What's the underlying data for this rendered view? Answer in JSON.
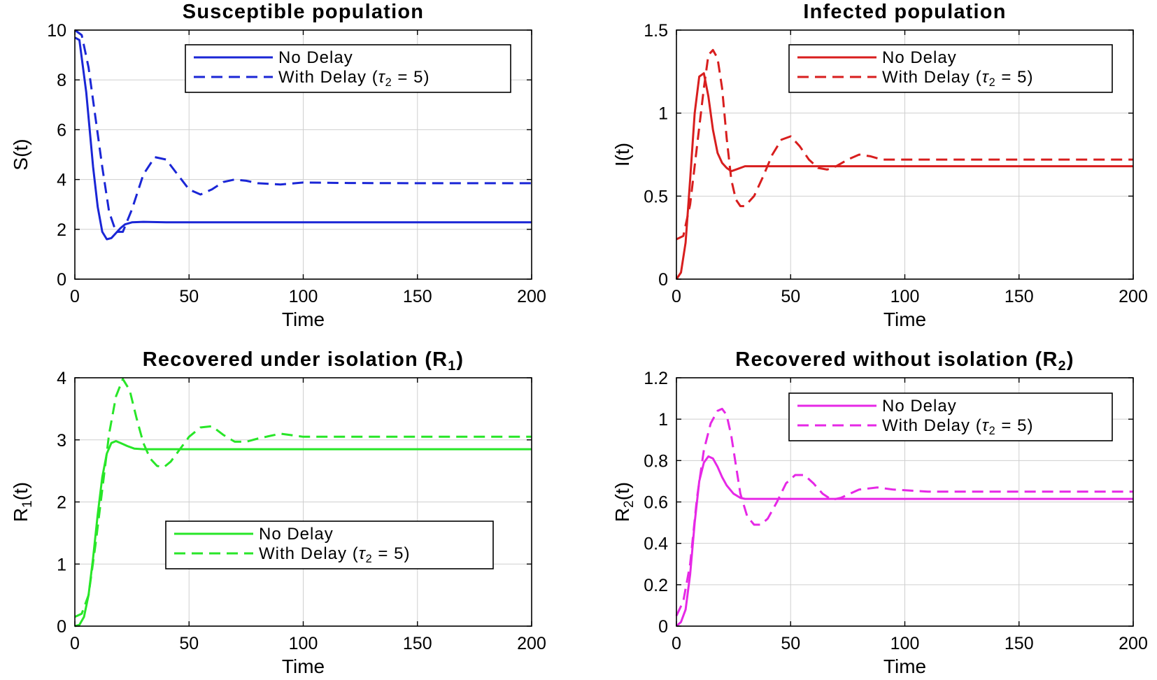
{
  "chart_data": [
    {
      "type": "line",
      "title": "Susceptible population",
      "xlabel": "Time",
      "ylabel": "S(t)",
      "xlim": [
        0,
        200
      ],
      "ylim": [
        0,
        10
      ],
      "xticks": [
        0,
        50,
        100,
        150,
        200
      ],
      "yticks": [
        0,
        2,
        4,
        6,
        8,
        10
      ],
      "ytick_labels": [
        "0",
        "2",
        "4",
        "6",
        "8",
        "10"
      ],
      "grid": true,
      "legend_position": "top-right",
      "color": "#1a26d6",
      "series": [
        {
          "name": "No Delay",
          "style": "solid",
          "x": [
            0,
            2,
            5,
            8,
            10,
            12,
            14,
            16,
            18,
            20,
            22,
            25,
            30,
            40,
            60,
            100,
            150,
            200
          ],
          "y": [
            9.7,
            9.6,
            7.5,
            4.5,
            2.9,
            1.9,
            1.6,
            1.65,
            1.85,
            2.05,
            2.2,
            2.28,
            2.3,
            2.28,
            2.28,
            2.28,
            2.28,
            2.28
          ]
        },
        {
          "name": "With Delay (τ2 = 5)",
          "style": "dashed",
          "x": [
            0,
            3,
            6,
            9,
            12,
            15,
            18,
            21,
            25,
            30,
            35,
            40,
            45,
            50,
            55,
            60,
            65,
            70,
            75,
            80,
            90,
            100,
            120,
            150,
            200
          ],
          "y": [
            10,
            9.8,
            8.5,
            6.5,
            4.5,
            2.7,
            1.9,
            1.9,
            2.8,
            4.2,
            4.9,
            4.8,
            4.2,
            3.6,
            3.4,
            3.6,
            3.9,
            4.0,
            3.95,
            3.85,
            3.8,
            3.88,
            3.86,
            3.85,
            3.85
          ]
        }
      ]
    },
    {
      "type": "line",
      "title": "Infected population",
      "xlabel": "Time",
      "ylabel": "I(t)",
      "xlim": [
        0,
        200
      ],
      "ylim": [
        0,
        1.5
      ],
      "xticks": [
        0,
        50,
        100,
        150,
        200
      ],
      "yticks": [
        0,
        0.5,
        1,
        1.5
      ],
      "ytick_labels": [
        "0",
        "0.5",
        "1",
        "1.5"
      ],
      "grid": true,
      "legend_position": "top-right",
      "color": "#d81e1e",
      "series": [
        {
          "name": "No Delay",
          "style": "solid",
          "x": [
            0,
            2,
            4,
            6,
            8,
            10,
            12,
            14,
            16,
            18,
            20,
            22,
            24,
            26,
            30,
            40,
            60,
            100,
            150,
            200
          ],
          "y": [
            0.0,
            0.04,
            0.22,
            0.6,
            1.0,
            1.22,
            1.24,
            1.1,
            0.9,
            0.76,
            0.7,
            0.67,
            0.65,
            0.66,
            0.68,
            0.68,
            0.68,
            0.68,
            0.68,
            0.68
          ]
        },
        {
          "name": "With Delay (τ2 = 5)",
          "style": "dashed",
          "x": [
            0,
            3,
            6,
            9,
            12,
            14,
            16,
            18,
            20,
            22,
            24,
            26,
            28,
            30,
            34,
            38,
            42,
            46,
            50,
            54,
            58,
            62,
            66,
            70,
            75,
            80,
            85,
            90,
            100,
            120,
            150,
            200
          ],
          "y": [
            0.24,
            0.26,
            0.45,
            0.8,
            1.15,
            1.35,
            1.38,
            1.33,
            1.15,
            0.85,
            0.6,
            0.48,
            0.44,
            0.44,
            0.5,
            0.62,
            0.75,
            0.84,
            0.86,
            0.8,
            0.72,
            0.67,
            0.66,
            0.68,
            0.72,
            0.75,
            0.74,
            0.72,
            0.72,
            0.72,
            0.72,
            0.72
          ]
        }
      ]
    },
    {
      "type": "line",
      "title": "Recovered under isolation (R1)",
      "xlabel": "Time",
      "ylabel": "R1(t)",
      "xlim": [
        0,
        200
      ],
      "ylim": [
        0,
        4
      ],
      "xticks": [
        0,
        50,
        100,
        150,
        200
      ],
      "yticks": [
        0,
        1,
        2,
        3,
        4
      ],
      "ytick_labels": [
        "0",
        "1",
        "2",
        "3",
        "4"
      ],
      "grid": true,
      "legend_position": "center-right",
      "color": "#28e628",
      "series": [
        {
          "name": "No Delay",
          "style": "solid",
          "x": [
            0,
            2,
            4,
            6,
            8,
            10,
            12,
            14,
            16,
            18,
            20,
            23,
            26,
            30,
            40,
            60,
            100,
            150,
            200
          ],
          "y": [
            0.0,
            0.02,
            0.15,
            0.5,
            1.1,
            1.8,
            2.4,
            2.78,
            2.95,
            2.98,
            2.95,
            2.9,
            2.86,
            2.85,
            2.85,
            2.85,
            2.85,
            2.85,
            2.85
          ]
        },
        {
          "name": "With Delay (τ2 = 5)",
          "style": "dashed",
          "x": [
            0,
            3,
            6,
            9,
            12,
            15,
            18,
            21,
            24,
            27,
            30,
            33,
            36,
            39,
            42,
            46,
            50,
            55,
            60,
            65,
            70,
            75,
            80,
            90,
            100,
            120,
            150,
            200
          ],
          "y": [
            0.15,
            0.2,
            0.5,
            1.3,
            2.2,
            3.1,
            3.7,
            3.98,
            3.8,
            3.35,
            2.95,
            2.7,
            2.58,
            2.56,
            2.65,
            2.85,
            3.05,
            3.2,
            3.22,
            3.08,
            2.97,
            2.97,
            3.02,
            3.1,
            3.05,
            3.05,
            3.05,
            3.05
          ]
        }
      ]
    },
    {
      "type": "line",
      "title": "Recovered without isolation (R2)",
      "xlabel": "Time",
      "ylabel": "R2(t)",
      "xlim": [
        0,
        200
      ],
      "ylim": [
        0,
        1.2
      ],
      "xticks": [
        0,
        50,
        100,
        150,
        200
      ],
      "yticks": [
        0,
        0.2,
        0.4,
        0.6,
        0.8,
        1,
        1.2
      ],
      "ytick_labels": [
        "0",
        "0.2",
        "0.4",
        "0.6",
        "0.8",
        "1",
        "1.2"
      ],
      "grid": true,
      "legend_position": "top-right",
      "color": "#e628e6",
      "series": [
        {
          "name": "No Delay",
          "style": "solid",
          "x": [
            0,
            2,
            4,
            6,
            8,
            10,
            12,
            14,
            16,
            18,
            20,
            22,
            25,
            28,
            30,
            40,
            60,
            100,
            150,
            200
          ],
          "y": [
            0.0,
            0.02,
            0.08,
            0.25,
            0.5,
            0.7,
            0.79,
            0.82,
            0.81,
            0.77,
            0.72,
            0.68,
            0.64,
            0.62,
            0.615,
            0.615,
            0.615,
            0.615,
            0.615,
            0.615
          ]
        },
        {
          "name": "With Delay (τ2 = 5)",
          "style": "dashed",
          "x": [
            0,
            3,
            6,
            9,
            12,
            15,
            18,
            20,
            22,
            24,
            26,
            28,
            31,
            34,
            37,
            40,
            44,
            48,
            52,
            56,
            60,
            64,
            68,
            72,
            76,
            80,
            88,
            95,
            110,
            150,
            200
          ],
          "y": [
            0.05,
            0.12,
            0.3,
            0.62,
            0.85,
            0.98,
            1.04,
            1.05,
            1.02,
            0.92,
            0.78,
            0.64,
            0.53,
            0.49,
            0.49,
            0.52,
            0.6,
            0.69,
            0.73,
            0.73,
            0.69,
            0.64,
            0.61,
            0.62,
            0.64,
            0.66,
            0.67,
            0.66,
            0.65,
            0.65,
            0.65
          ]
        }
      ]
    }
  ]
}
